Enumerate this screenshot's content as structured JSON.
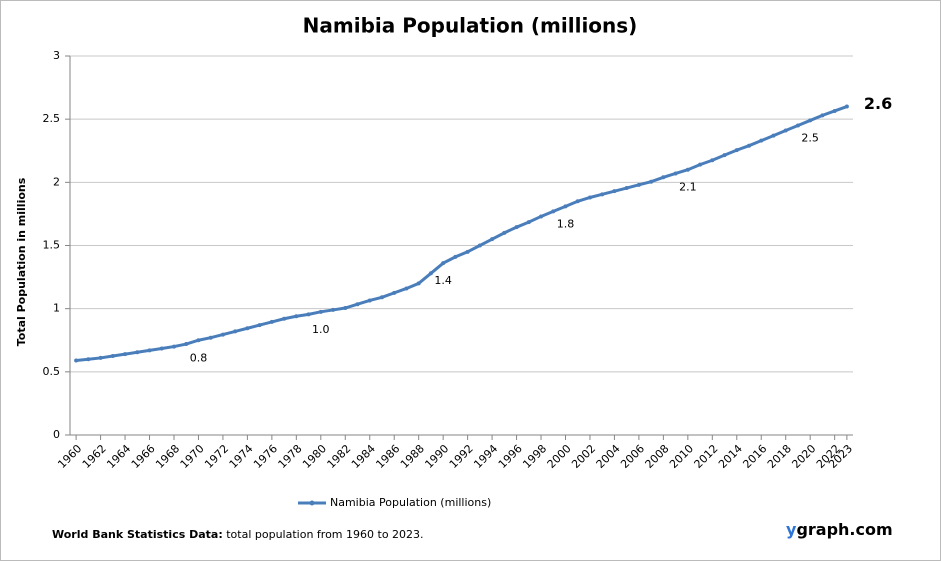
{
  "chart_data": {
    "type": "line",
    "title": "Namibia Population (millions)",
    "y_axis_label": "Total Population  in millions",
    "x": [
      1960,
      1961,
      1962,
      1963,
      1964,
      1965,
      1966,
      1967,
      1968,
      1969,
      1970,
      1971,
      1972,
      1973,
      1974,
      1975,
      1976,
      1977,
      1978,
      1979,
      1980,
      1981,
      1982,
      1983,
      1984,
      1985,
      1986,
      1987,
      1988,
      1989,
      1990,
      1991,
      1992,
      1993,
      1994,
      1995,
      1996,
      1997,
      1998,
      1999,
      2000,
      2001,
      2002,
      2003,
      2004,
      2005,
      2006,
      2007,
      2008,
      2009,
      2010,
      2011,
      2012,
      2013,
      2014,
      2015,
      2016,
      2017,
      2018,
      2019,
      2020,
      2021,
      2022,
      2023
    ],
    "series": [
      {
        "name": "Namibia Population (millions)",
        "color": "#4a7ebb",
        "values": [
          0.59,
          0.6,
          0.61,
          0.625,
          0.64,
          0.655,
          0.67,
          0.685,
          0.7,
          0.72,
          0.75,
          0.77,
          0.795,
          0.82,
          0.845,
          0.87,
          0.895,
          0.92,
          0.94,
          0.955,
          0.975,
          0.99,
          1.005,
          1.035,
          1.065,
          1.09,
          1.125,
          1.16,
          1.2,
          1.28,
          1.36,
          1.41,
          1.45,
          1.5,
          1.55,
          1.6,
          1.645,
          1.685,
          1.73,
          1.77,
          1.81,
          1.85,
          1.88,
          1.905,
          1.93,
          1.955,
          1.98,
          2.005,
          2.04,
          2.07,
          2.1,
          2.14,
          2.175,
          2.215,
          2.255,
          2.29,
          2.33,
          2.37,
          2.41,
          2.45,
          2.49,
          2.53,
          2.565,
          2.6
        ],
        "value_labels": [
          null,
          null,
          null,
          null,
          null,
          null,
          null,
          null,
          null,
          null,
          "0.8",
          null,
          null,
          null,
          null,
          null,
          null,
          null,
          null,
          null,
          "1.0",
          null,
          null,
          null,
          null,
          null,
          null,
          null,
          null,
          null,
          "1.4",
          null,
          null,
          null,
          null,
          null,
          null,
          null,
          null,
          null,
          "1.8",
          null,
          null,
          null,
          null,
          null,
          null,
          null,
          null,
          null,
          "2.1",
          null,
          null,
          null,
          null,
          null,
          null,
          null,
          null,
          null,
          "2.5",
          null,
          null,
          "2.6"
        ]
      }
    ],
    "xlim": [
      1959.5,
      2023.5
    ],
    "xticks": [
      1960,
      1962,
      1964,
      1966,
      1968,
      1970,
      1972,
      1974,
      1976,
      1978,
      1980,
      1982,
      1984,
      1986,
      1988,
      1990,
      1992,
      1994,
      1996,
      1998,
      2000,
      2002,
      2004,
      2006,
      2008,
      2010,
      2012,
      2014,
      2016,
      2018,
      2020,
      2022,
      2023
    ],
    "ylim": [
      0,
      3
    ],
    "yticks": [
      0,
      0.5,
      1,
      1.5,
      2,
      2.5,
      3
    ],
    "grid": true,
    "legend": "bottom",
    "source_label": "World Bank Statistics Data:",
    "source_text": "total population from 1960 to 2023.",
    "brand_initial": "y",
    "brand_rest": "graph.com"
  }
}
